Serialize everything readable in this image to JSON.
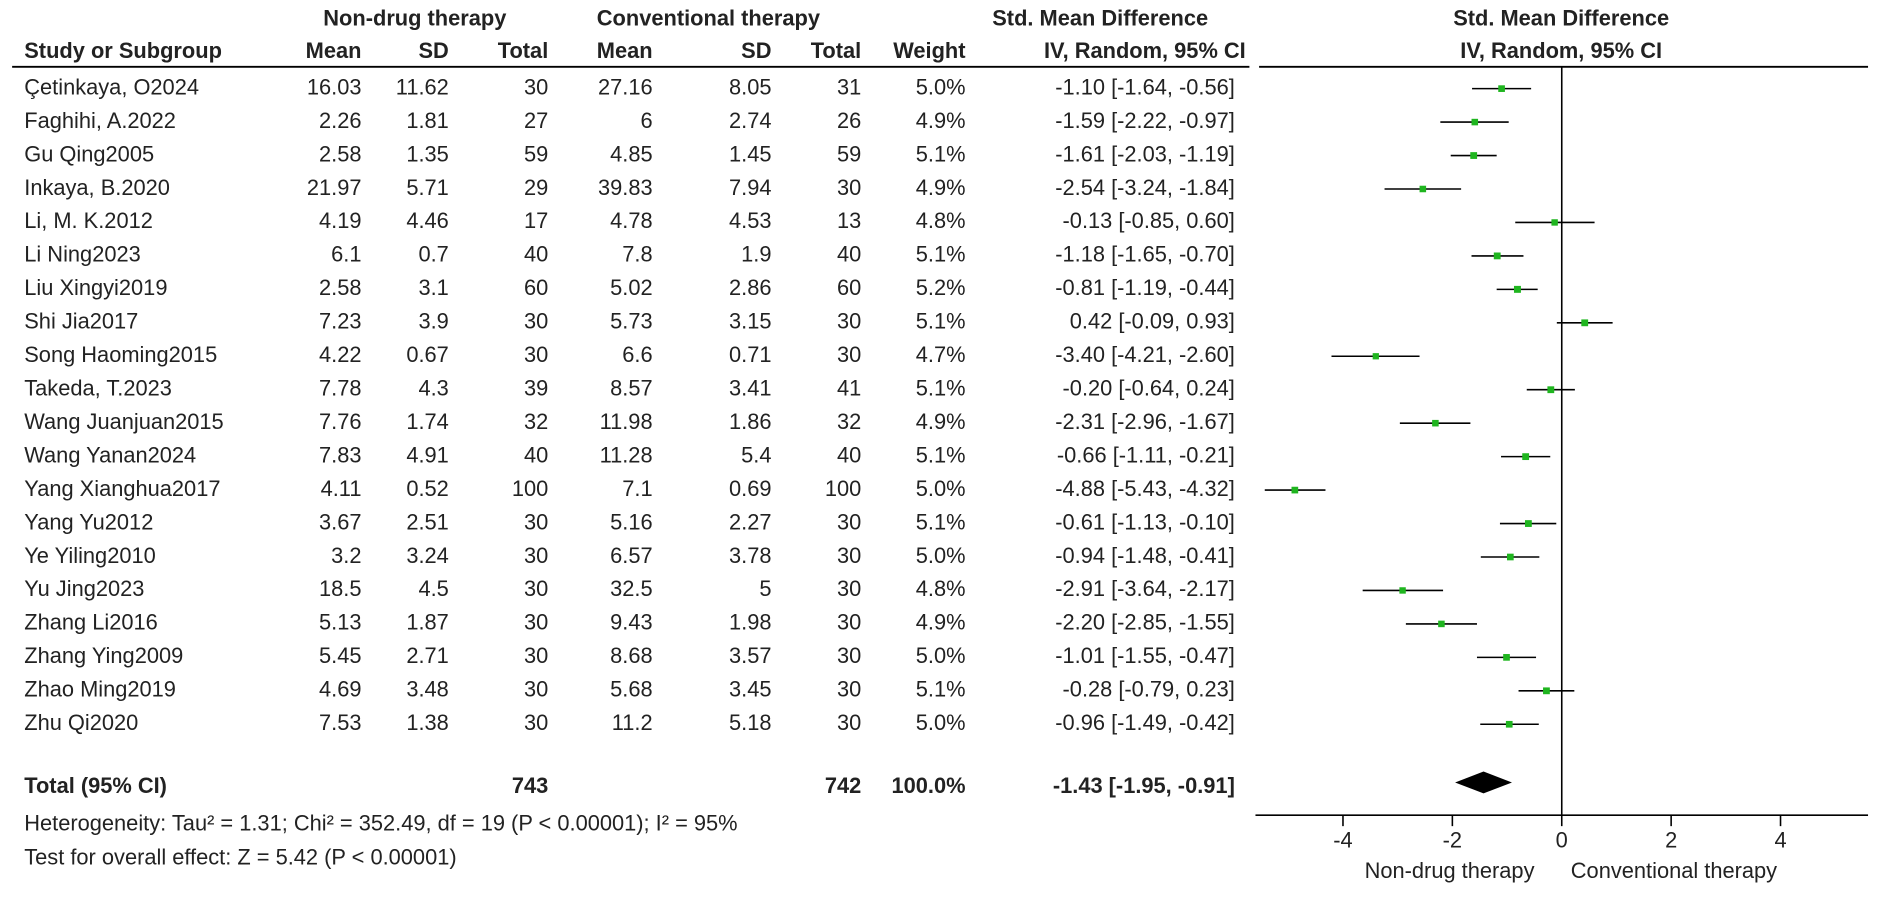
{
  "chart_data": {
    "type": "forest",
    "group_headers": [
      "Non-drug therapy",
      "Conventional therapy",
      "Std. Mean Difference",
      "Std. Mean Difference"
    ],
    "columns": [
      "Study or Subgroup",
      "Mean",
      "SD",
      "Total",
      "Mean",
      "SD",
      "Total",
      "Weight",
      "IV, Random, 95% CI",
      "IV, Random, 95% CI"
    ],
    "studies": [
      "Çetinkaya, O2024",
      "Faghihi, A.2022",
      "Gu Qing2005",
      "Inkaya, B.2020",
      "Li, M. K.2012",
      "Li Ning2023",
      "Liu Xingyi2019",
      "Shi Jia2017",
      "Song Haoming2015",
      "Takeda, T.2023",
      "Wang Juanjuan2015",
      "Wang Yanan2024",
      "Yang Xianghua2017",
      "Yang Yu2012",
      "Ye Yiling2010",
      "Yu Jing2023",
      "Zhang Li2016",
      "Zhang Ying2009",
      "Zhao Ming2019",
      "Zhu Qi2020"
    ],
    "exp_mean": [
      16.03,
      2.26,
      2.58,
      21.97,
      4.19,
      6.1,
      2.58,
      7.23,
      4.22,
      7.78,
      7.76,
      7.83,
      4.11,
      3.67,
      3.2,
      18.5,
      5.13,
      5.45,
      4.69,
      7.53
    ],
    "exp_sd": [
      11.62,
      1.81,
      1.35,
      5.71,
      4.46,
      0.7,
      3.1,
      3.9,
      0.67,
      4.3,
      1.74,
      4.91,
      0.52,
      2.51,
      3.24,
      4.5,
      1.87,
      2.71,
      3.48,
      1.38
    ],
    "exp_total": [
      30,
      27,
      59,
      29,
      17,
      40,
      60,
      30,
      30,
      39,
      32,
      40,
      100,
      30,
      30,
      30,
      30,
      30,
      30,
      30
    ],
    "ctl_mean": [
      27.16,
      6,
      4.85,
      39.83,
      4.78,
      7.8,
      5.02,
      5.73,
      6.6,
      8.57,
      11.98,
      11.28,
      7.1,
      5.16,
      6.57,
      32.5,
      9.43,
      8.68,
      5.68,
      11.2
    ],
    "ctl_sd": [
      8.05,
      2.74,
      1.45,
      7.94,
      4.53,
      1.9,
      2.86,
      3.15,
      0.71,
      3.41,
      1.86,
      5.4,
      0.69,
      2.27,
      3.78,
      5,
      1.98,
      3.57,
      3.45,
      5.18
    ],
    "ctl_total": [
      31,
      26,
      59,
      30,
      13,
      40,
      60,
      30,
      30,
      41,
      32,
      40,
      100,
      30,
      30,
      30,
      30,
      30,
      30,
      30
    ],
    "weights": [
      5.0,
      4.9,
      5.1,
      4.9,
      4.8,
      5.1,
      5.2,
      5.1,
      4.7,
      5.1,
      4.9,
      5.1,
      5.0,
      5.1,
      5.0,
      4.8,
      4.9,
      5.0,
      5.1,
      5.0
    ],
    "weight_labels": [
      "5.0%",
      "4.9%",
      "5.1%",
      "4.9%",
      "4.8%",
      "5.1%",
      "5.2%",
      "5.1%",
      "4.7%",
      "5.1%",
      "4.9%",
      "5.1%",
      "5.0%",
      "5.1%",
      "5.0%",
      "4.8%",
      "4.9%",
      "5.0%",
      "5.1%",
      "5.0%"
    ],
    "values": [
      -1.1,
      -1.59,
      -1.61,
      -2.54,
      -0.13,
      -1.18,
      -0.81,
      0.42,
      -3.4,
      -0.2,
      -2.31,
      -0.66,
      -4.88,
      -0.61,
      -0.94,
      -2.91,
      -2.2,
      -1.01,
      -0.28,
      -0.96
    ],
    "lower": [
      -1.64,
      -2.22,
      -2.03,
      -3.24,
      -0.85,
      -1.65,
      -1.19,
      -0.09,
      -4.21,
      -0.64,
      -2.96,
      -1.11,
      -5.43,
      -1.13,
      -1.48,
      -3.64,
      -2.85,
      -1.55,
      -0.79,
      -1.49
    ],
    "upper": [
      -0.56,
      -0.97,
      -1.19,
      -1.84,
      0.6,
      -0.7,
      -0.44,
      0.93,
      -2.6,
      0.24,
      -1.67,
      -0.21,
      -4.32,
      -0.1,
      -0.41,
      -2.17,
      -1.55,
      -0.47,
      0.23,
      -0.42
    ],
    "ci_labels": [
      "-1.10 [-1.64, -0.56]",
      "-1.59 [-2.22, -0.97]",
      "-1.61 [-2.03, -1.19]",
      "-2.54 [-3.24, -1.84]",
      "-0.13 [-0.85, 0.60]",
      "-1.18 [-1.65, -0.70]",
      "-0.81 [-1.19, -0.44]",
      "0.42 [-0.09, 0.93]",
      "-3.40 [-4.21, -2.60]",
      "-0.20 [-0.64, 0.24]",
      "-2.31 [-2.96, -1.67]",
      "-0.66 [-1.11, -0.21]",
      "-4.88 [-5.43, -4.32]",
      "-0.61 [-1.13, -0.10]",
      "-0.94 [-1.48, -0.41]",
      "-2.91 [-3.64, -2.17]",
      "-2.20 [-2.85, -1.55]",
      "-1.01 [-1.55, -0.47]",
      "-0.28 [-0.79, 0.23]",
      "-0.96 [-1.49, -0.42]"
    ],
    "total": {
      "label": "Total (95% CI)",
      "exp_total": 743,
      "ctl_total": 742,
      "weight": 100.0,
      "weight_label": "100.0%",
      "value": -1.43,
      "lower": -1.95,
      "upper": -0.91,
      "ci_label": "-1.43 [-1.95, -0.91]"
    },
    "heterogeneity": "Heterogeneity: Tau² = 1.31; Chi² = 352.49, df = 19 (P < 0.00001); I² = 95%",
    "overall_effect": "Test for overall effect: Z = 5.42 (P < 0.00001)",
    "xlim": [
      -5.6,
      5.6
    ],
    "xticks": [
      -4,
      -2,
      0,
      2,
      4
    ],
    "x_axis_labels": [
      "Non-drug therapy",
      "Conventional therapy"
    ],
    "marker_color": "#1fb51f",
    "line_color": "#000000"
  }
}
